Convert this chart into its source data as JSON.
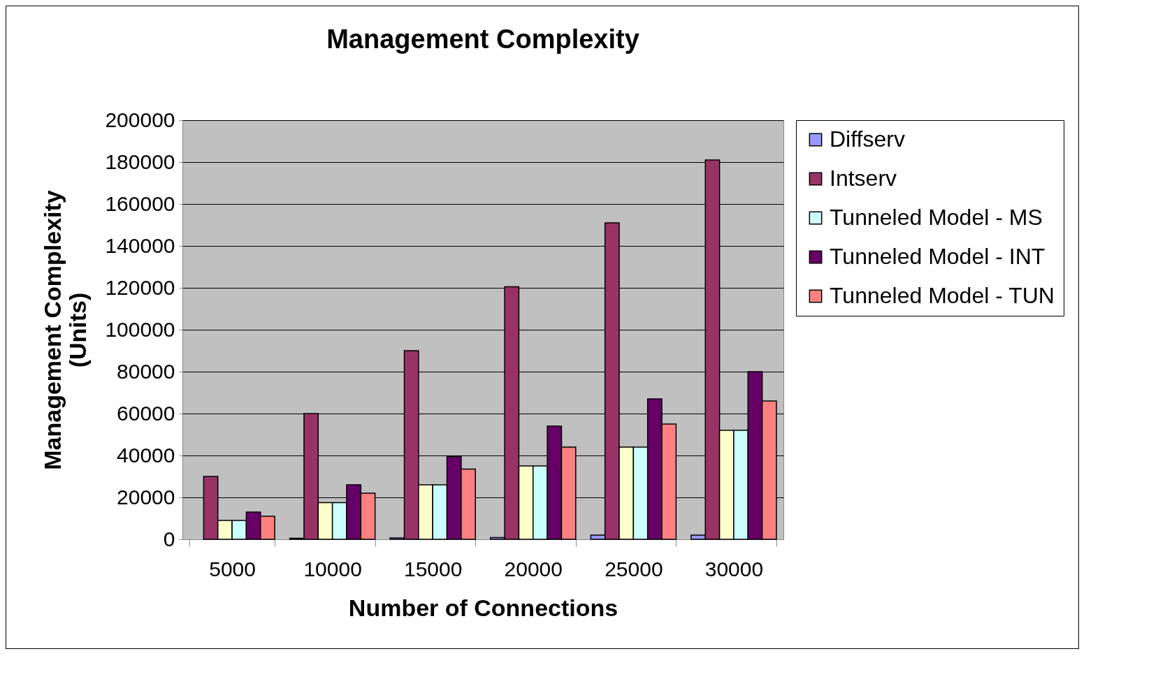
{
  "chart_data": {
    "type": "bar",
    "title": "Management Complexity",
    "xlabel": "Number of Connections",
    "ylabel": "Management Complexity (Units)",
    "categories": [
      "5000",
      "10000",
      "15000",
      "20000",
      "25000",
      "30000"
    ],
    "series": [
      {
        "name": "Diffserv",
        "color": "#9999ff",
        "values": [
          null,
          500,
          700,
          800,
          2000,
          2000
        ]
      },
      {
        "name": "Intserv",
        "color": "#993366",
        "values": [
          30000,
          60000,
          90000,
          120500,
          151000,
          181000
        ]
      },
      {
        "color": "#ffffcc",
        "values": [
          9000,
          17500,
          26000,
          35000,
          44000,
          52000
        ]
      },
      {
        "name": "Tunneled Model - MS",
        "color": "#ccffff",
        "values": [
          9000,
          17500,
          26000,
          35000,
          44000,
          52000
        ]
      },
      {
        "name": "Tunneled Model - INT",
        "color": "#660066",
        "values": [
          13000,
          26000,
          39500,
          54000,
          67000,
          80000
        ]
      },
      {
        "name": "Tunneled Model - TUN",
        "color": "#ff8080",
        "values": [
          11000,
          22000,
          33500,
          44000,
          55000,
          66000
        ]
      }
    ],
    "ylim": [
      0,
      200000
    ],
    "yticks": [
      0,
      20000,
      40000,
      60000,
      80000,
      100000,
      120000,
      140000,
      160000,
      180000,
      200000
    ],
    "grid": "y",
    "legend": "right"
  }
}
